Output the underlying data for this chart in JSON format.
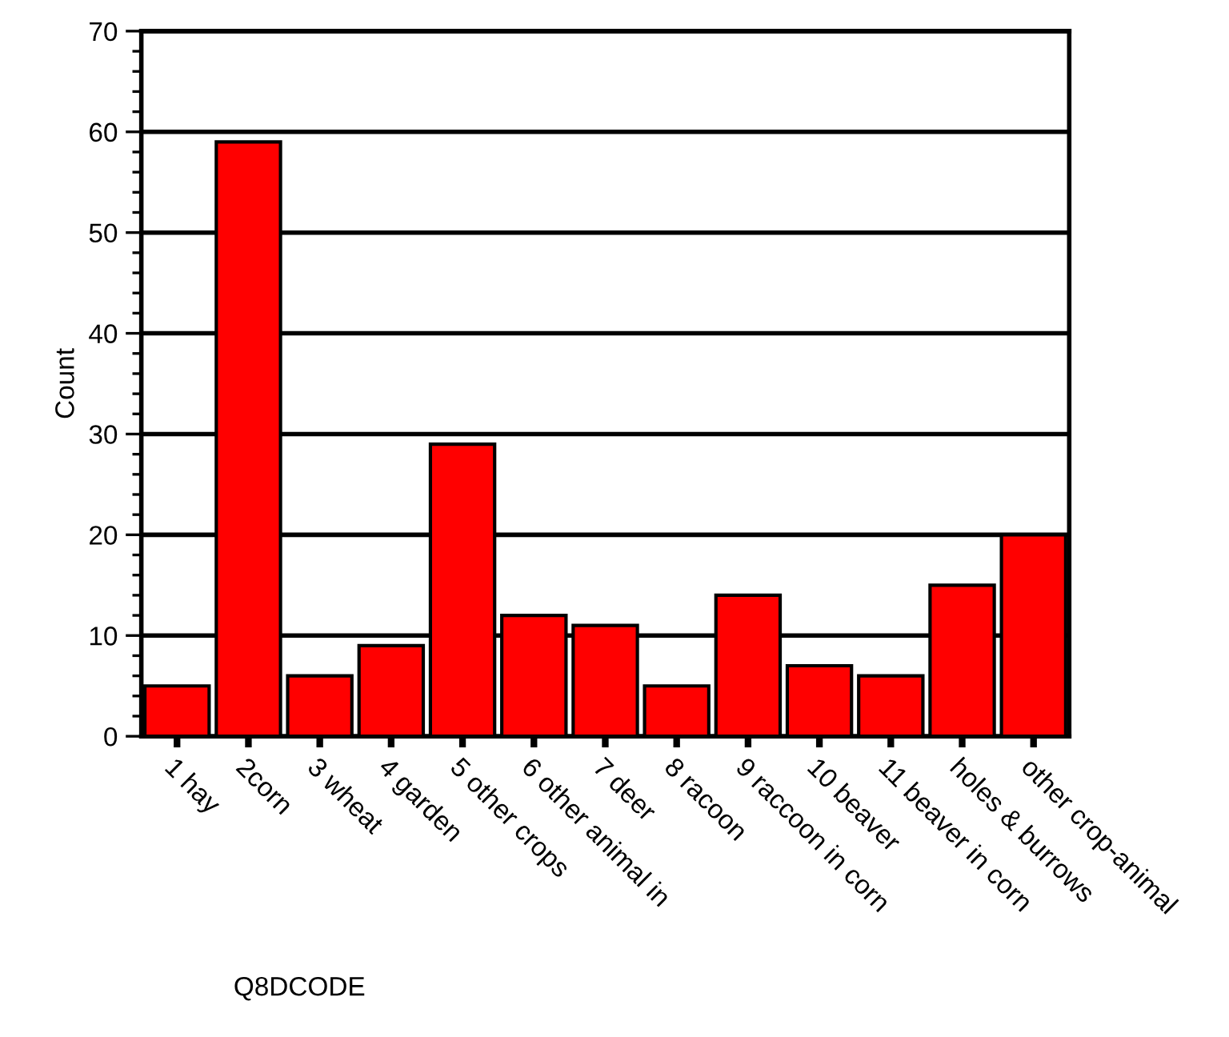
{
  "chart_data": {
    "type": "bar",
    "xlabel": "Q8DCODE",
    "ylabel": "Count",
    "categories": [
      "1 hay",
      "2corn",
      "3 wheat",
      "4 garden",
      "5 other crops",
      "6 other animal in",
      "7 deer",
      "8 racoon",
      "9 raccoon in corn",
      "10 beaver",
      "11 beaver in corn",
      "holes & burrows",
      "other crop-animal"
    ],
    "values": [
      5,
      59,
      6,
      9,
      29,
      12,
      11,
      5,
      14,
      7,
      6,
      15,
      20
    ],
    "color": "#ff0000",
    "ylim": [
      0,
      70
    ],
    "yticks": [
      0,
      10,
      20,
      30,
      40,
      50,
      60,
      70
    ],
    "grid": "y"
  }
}
